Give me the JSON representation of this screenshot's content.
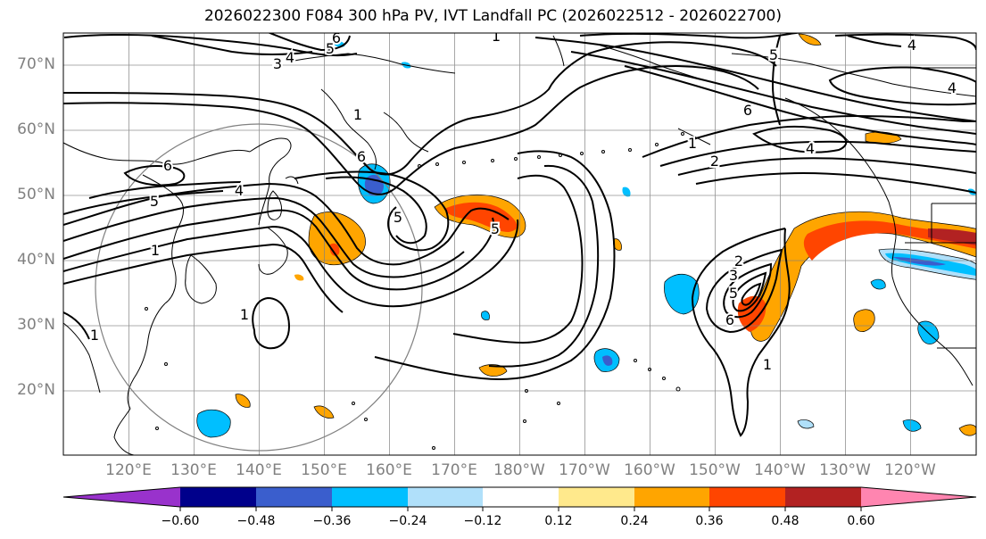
{
  "title": "2026022300 F084 300 hPa PV, IVT Landfall PC (2026022512 - 2026022700)",
  "map": {
    "lat_labels": [
      "70°N",
      "60°N",
      "50°N",
      "40°N",
      "30°N",
      "20°N"
    ],
    "lon_labels": [
      "120°E",
      "130°E",
      "140°E",
      "150°E",
      "160°E",
      "170°E",
      "180°W",
      "170°W",
      "160°W",
      "150°W",
      "140°W",
      "130°W",
      "120°W"
    ],
    "contour_labels": [
      "6",
      "5",
      "4",
      "3",
      "5",
      "4",
      "1",
      "6",
      "5",
      "4",
      "1",
      "1",
      "1",
      "6",
      "5",
      "5",
      "6",
      "2",
      "2",
      "3",
      "5",
      "6",
      "1",
      "4",
      "1",
      "4",
      "1"
    ],
    "colors": {
      "ocean": "#ffffff",
      "grid": "#808080",
      "coast": "#000000",
      "contour": "#000000",
      "radius_circle": "#808080"
    }
  },
  "colorbar": {
    "ticks": [
      "−0.60",
      "−0.48",
      "−0.36",
      "−0.24",
      "−0.12",
      "0.12",
      "0.24",
      "0.36",
      "0.48",
      "0.60"
    ],
    "colors": [
      "#9932cc",
      "#00008b",
      "#3a5ecd",
      "#00bfff",
      "#b0e0fa",
      "#ffffff",
      "#ffe98c",
      "#ffa500",
      "#ff4500",
      "#b22222",
      "#ff85b0"
    ]
  }
}
